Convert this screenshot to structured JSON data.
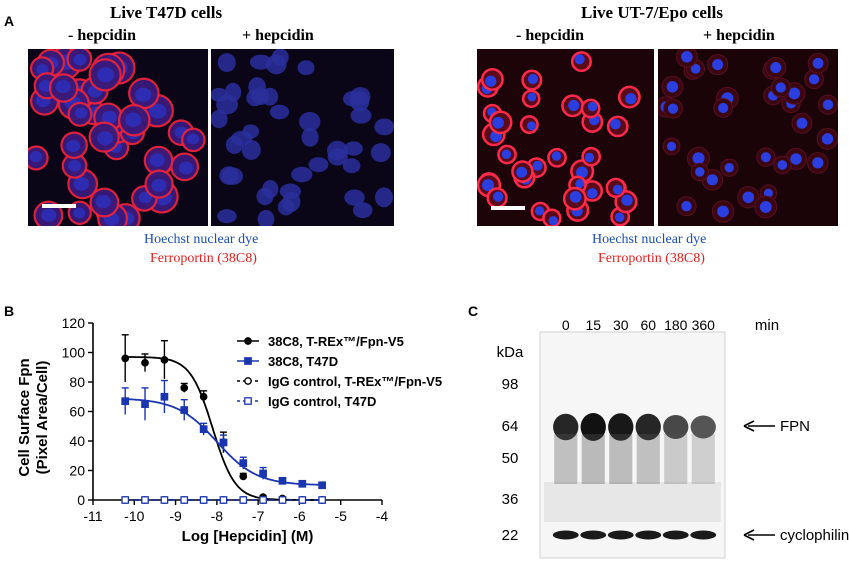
{
  "panel_a": {
    "letter": "A",
    "left": {
      "title": "Live T47D cells",
      "minus_label": "- hepcidin",
      "plus_label": "+ hepcidin",
      "legend_nuclear": "Hoechst nuclear dye",
      "legend_stain": "Ferroportin (38C8)"
    },
    "right": {
      "title": "Live UT-7/Epo cells",
      "minus_label": "- hepcidin",
      "plus_label": "+ hepcidin",
      "legend_nuclear": "Hoechst nuclear dye",
      "legend_stain": "Ferroportin (38C8)"
    }
  },
  "panel_b": {
    "letter": "B"
  },
  "chart_data": {
    "type": "line",
    "xlabel": "Log [Hepcidin] (M)",
    "ylabel_line1": "Cell Surface Fpn",
    "ylabel_line2": "(Pixel Area/Cell)",
    "xlim": [
      -11,
      -4
    ],
    "ylim": [
      0,
      120
    ],
    "xticks": [
      "-11",
      "-10",
      "-9",
      "-8",
      "-7",
      "-6",
      "-5",
      "-4"
    ],
    "yticks": [
      "0",
      "20",
      "40",
      "60",
      "80",
      "100",
      "120"
    ],
    "legend_position": "top-right",
    "series": [
      {
        "name": "38C8, T-REx™/Fpn-V5",
        "color": "#000000",
        "marker": "circle",
        "filled": true,
        "dashed": false,
        "x": [
          -10.22,
          -9.74,
          -9.27,
          -8.79,
          -8.32,
          -7.84,
          -7.36,
          -6.88,
          -6.41,
          -5.93,
          -5.45
        ],
        "y": [
          96,
          93,
          95,
          76,
          70,
          39,
          16,
          2,
          1,
          0,
          0
        ],
        "err": [
          16,
          6,
          13,
          3,
          4,
          7,
          2,
          1,
          1,
          1,
          1
        ],
        "fit_top": 97,
        "fit_bottom": 0,
        "fit_logec50": -8.1,
        "fit_hill": 1.6
      },
      {
        "name": "38C8, T47D",
        "color": "#1a35b0",
        "marker": "square",
        "filled": true,
        "dashed": false,
        "x": [
          -10.22,
          -9.74,
          -9.27,
          -8.79,
          -8.32,
          -7.84,
          -7.36,
          -6.88,
          -6.41,
          -5.93,
          -5.45
        ],
        "y": [
          67,
          65,
          70,
          61,
          48,
          39,
          25,
          18,
          13,
          11,
          10
        ],
        "err": [
          9,
          11,
          11,
          7,
          4,
          5,
          4,
          4,
          2,
          2,
          1
        ],
        "fit_top": 69,
        "fit_bottom": 10,
        "fit_logec50": -8.0,
        "fit_hill": 0.9
      },
      {
        "name": "IgG control, T-REx™/Fpn-V5",
        "color": "#000000",
        "marker": "circle",
        "filled": false,
        "dashed": true,
        "x": [
          -10.22,
          -9.74,
          -9.27,
          -8.79,
          -8.32,
          -7.84,
          -7.36,
          -6.88,
          -6.41,
          -5.93,
          -5.45
        ],
        "y": [
          0,
          0,
          0,
          0,
          0,
          0,
          0,
          0,
          0,
          0,
          0
        ]
      },
      {
        "name": "IgG control, T47D",
        "color": "#1a35b0",
        "marker": "square",
        "filled": false,
        "dashed": true,
        "x": [
          -10.22,
          -9.74,
          -9.27,
          -8.79,
          -8.32,
          -7.84,
          -7.36,
          -6.88,
          -6.41,
          -5.93,
          -5.45
        ],
        "y": [
          0,
          0,
          0,
          0,
          0,
          0,
          0,
          0,
          0,
          0,
          0
        ]
      }
    ]
  },
  "panel_c": {
    "letter": "C",
    "time_labels": [
      "0",
      "15",
      "30",
      "60",
      "180",
      "360"
    ],
    "time_unit": "min",
    "mw_unit": "kDa",
    "mw_markers": [
      "98",
      "64",
      "50",
      "36",
      "22"
    ],
    "band_fpn_label": "FPN",
    "band_cyclophilin_label": "cyclophilin",
    "fpn_intensity": [
      0.85,
      1.0,
      0.95,
      0.85,
      0.6,
      0.5
    ]
  },
  "colors": {
    "cell_red": "#e8233c",
    "nucleus_blue": "#2b3ee0",
    "micrograph_bg": "#0a0618"
  }
}
